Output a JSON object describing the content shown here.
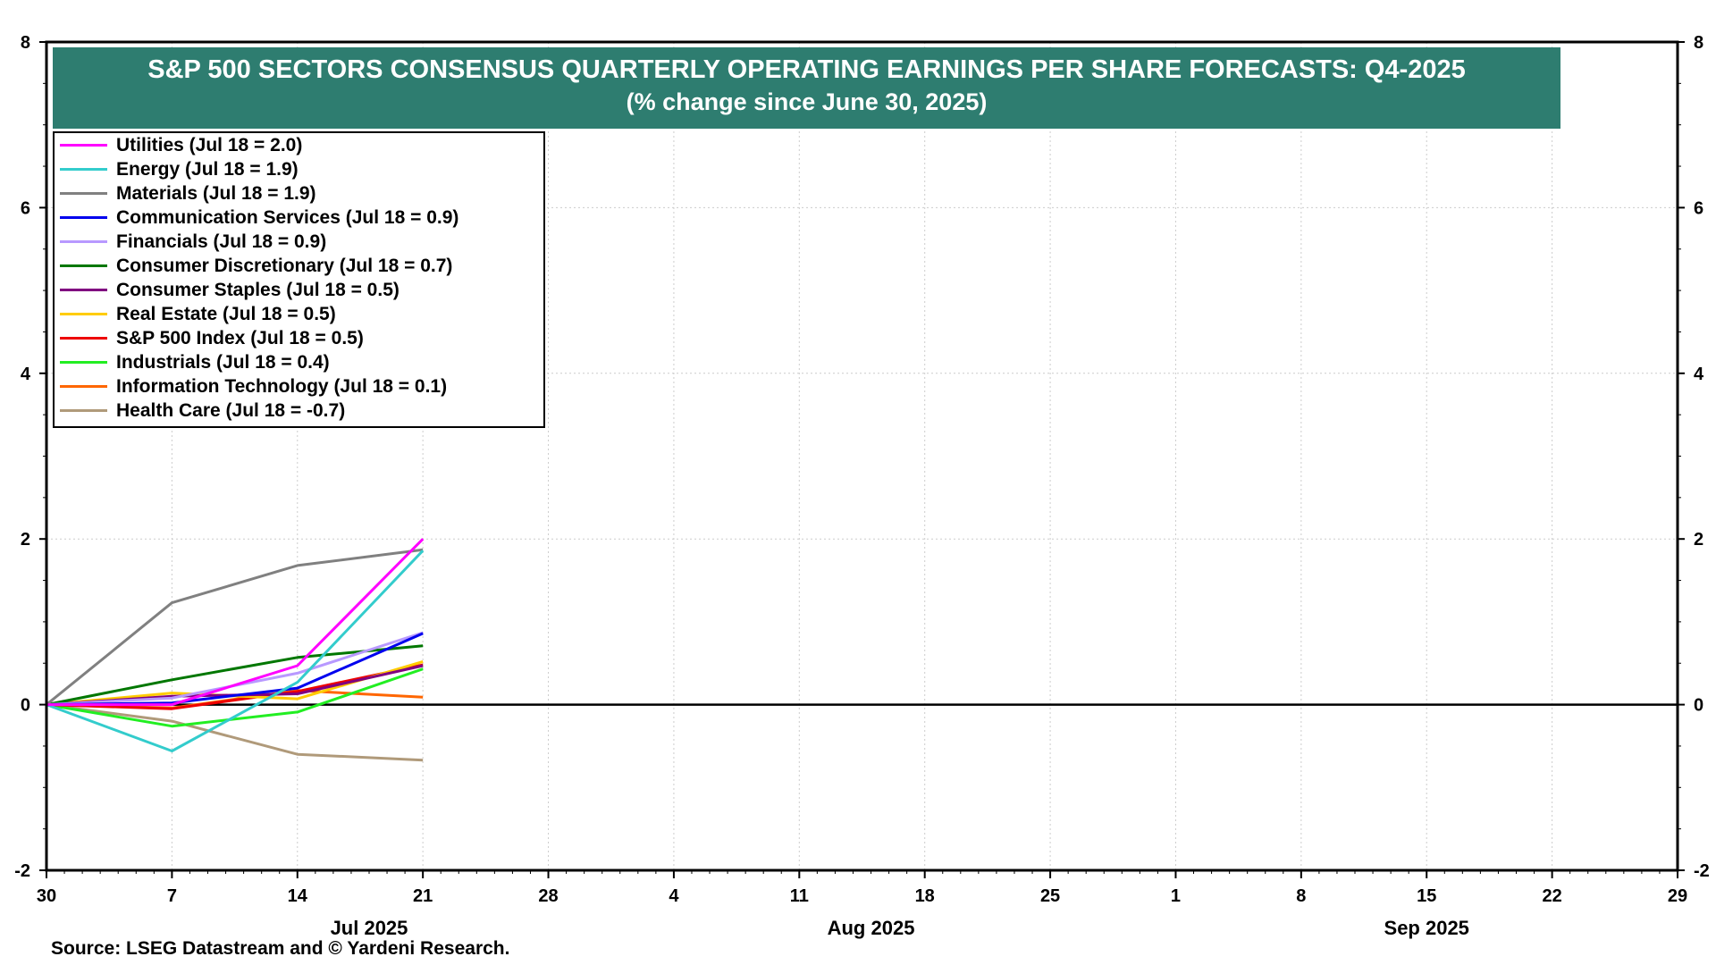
{
  "title": {
    "line1": "S&P 500 SECTORS CONSENSUS QUARTERLY OPERATING EARNINGS PER SHARE FORECASTS: Q4-2025",
    "line2": "(% change since June 30, 2025)"
  },
  "source": "Source: LSEG Datastream and © Yardeni Research.",
  "colors": {
    "banner": "#2e7d70",
    "zero_line": "#000000",
    "grid": "#cccccc"
  },
  "chart_data": {
    "type": "line",
    "ylim": [
      -2,
      8
    ],
    "y_ticks": [
      -2,
      0,
      2,
      4,
      6,
      8
    ],
    "y_tick_labels": [
      "-2",
      "0",
      "2",
      "4",
      "6",
      "8"
    ],
    "x_tick_labels": [
      "30",
      "7",
      "14",
      "21",
      "28",
      "4",
      "11",
      "18",
      "25",
      "1",
      "8",
      "15",
      "22",
      "29"
    ],
    "x_dates": [
      "2025-06-30",
      "2025-07-07",
      "2025-07-14",
      "2025-07-21",
      "2025-07-28",
      "2025-08-04",
      "2025-08-11",
      "2025-08-18",
      "2025-08-25",
      "2025-09-01",
      "2025-09-08",
      "2025-09-15",
      "2025-09-22",
      "2025-09-29"
    ],
    "month_labels": [
      {
        "label": "Jul 2025",
        "date": "2025-07-18"
      },
      {
        "label": "Aug 2025",
        "date": "2025-08-15"
      },
      {
        "label": "Sep 2025",
        "date": "2025-09-15"
      }
    ],
    "x": [
      "2025-06-30",
      "2025-07-07",
      "2025-07-14",
      "2025-07-21"
    ],
    "grid": true,
    "legend_position": "top-left",
    "series": [
      {
        "name": "Utilities (Jul 18 = 2.0)",
        "color": "#ff00ff",
        "values": [
          0,
          0.0,
          0.47,
          2.0
        ]
      },
      {
        "name": "Energy (Jul 18 = 1.9)",
        "color": "#33cccc",
        "values": [
          0,
          -0.56,
          0.27,
          1.86
        ]
      },
      {
        "name": "Materials (Jul 18 = 1.9)",
        "color": "#808080",
        "values": [
          0,
          1.23,
          1.68,
          1.87
        ]
      },
      {
        "name": "Communication Services (Jul 18 = 0.9)",
        "color": "#0000ee",
        "values": [
          0,
          0.02,
          0.2,
          0.86
        ]
      },
      {
        "name": "Financials (Jul 18 = 0.9)",
        "color": "#b899ff",
        "values": [
          0,
          0.08,
          0.38,
          0.87
        ]
      },
      {
        "name": "Consumer Discretionary (Jul 18 = 0.7)",
        "color": "#007700",
        "values": [
          0,
          0.3,
          0.57,
          0.71
        ]
      },
      {
        "name": "Consumer Staples (Jul 18 = 0.5)",
        "color": "#800080",
        "values": [
          0,
          0.1,
          0.13,
          0.47
        ]
      },
      {
        "name": "Real Estate (Jul 18 = 0.5)",
        "color": "#ffcc00",
        "values": [
          0,
          0.14,
          0.07,
          0.52
        ]
      },
      {
        "name": "S&P 500 Index (Jul 18 = 0.5)",
        "color": "#ee0000",
        "values": [
          0,
          -0.05,
          0.16,
          0.48
        ]
      },
      {
        "name": "Industrials (Jul 18 = 0.4)",
        "color": "#22ee22",
        "values": [
          0,
          -0.26,
          -0.09,
          0.43
        ]
      },
      {
        "name": "Information Technology (Jul 18 = 0.1)",
        "color": "#ff6600",
        "values": [
          0,
          -0.04,
          0.17,
          0.09
        ]
      },
      {
        "name": "Health Care (Jul 18 = -0.7)",
        "color": "#b09a7a",
        "values": [
          0,
          -0.2,
          -0.6,
          -0.67
        ]
      }
    ]
  }
}
